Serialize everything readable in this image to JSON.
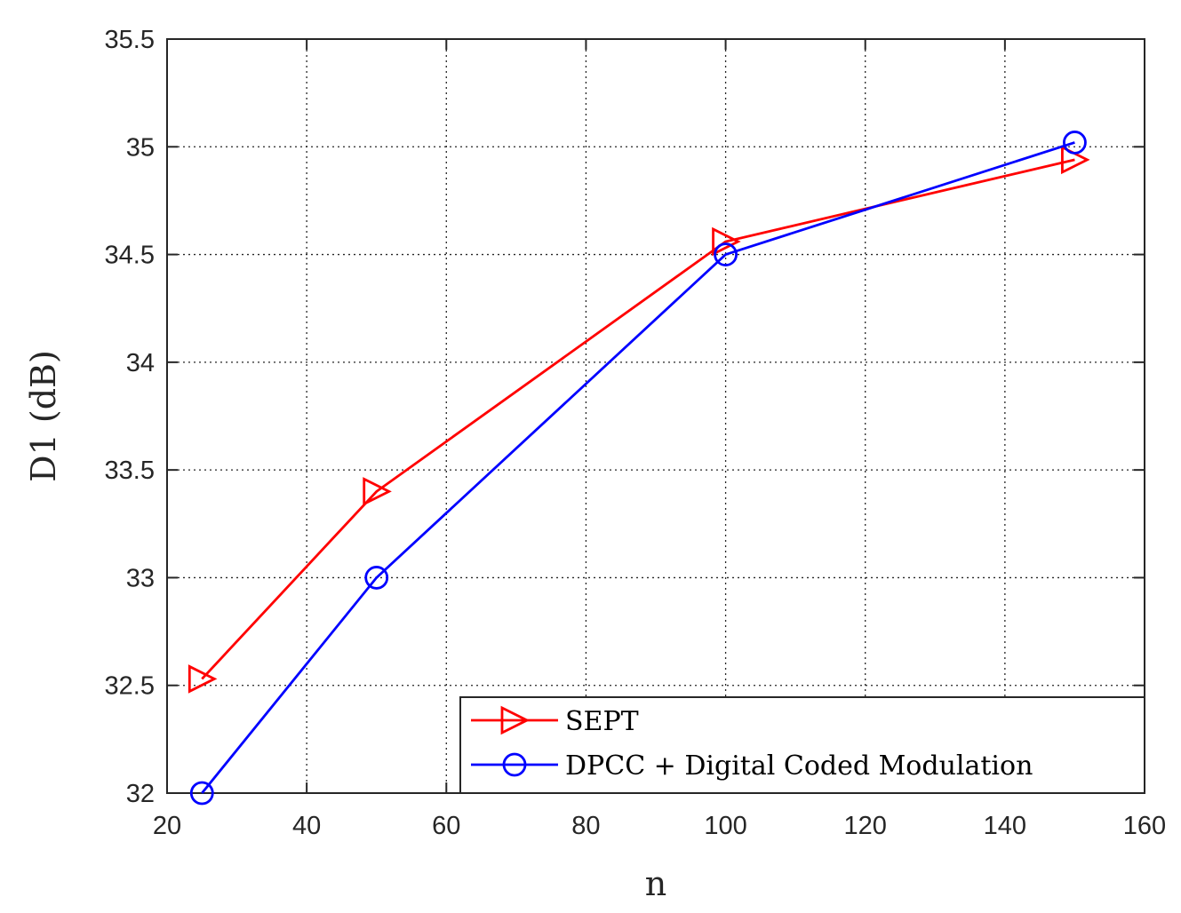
{
  "chart_data": {
    "type": "line",
    "xlabel": "n",
    "ylabel": "D1 (dB)",
    "xlim": [
      20,
      160
    ],
    "ylim": [
      32,
      35.5
    ],
    "xticks": [
      20,
      40,
      60,
      80,
      100,
      120,
      140,
      160
    ],
    "yticks": [
      32,
      32.5,
      33,
      33.5,
      34,
      34.5,
      35,
      35.5
    ],
    "grid": true,
    "legend_position": "bottom-right",
    "series": [
      {
        "name": "SEPT",
        "color": "#ff0000",
        "marker": "triangle-right",
        "x": [
          25,
          50,
          100,
          150
        ],
        "y": [
          32.53,
          33.4,
          34.56,
          34.94
        ]
      },
      {
        "name": "DPCC + Digital Coded Modulation",
        "color": "#0000ff",
        "marker": "circle",
        "x": [
          25,
          50,
          100,
          150
        ],
        "y": [
          32.0,
          33.0,
          34.5,
          35.02
        ]
      }
    ]
  }
}
